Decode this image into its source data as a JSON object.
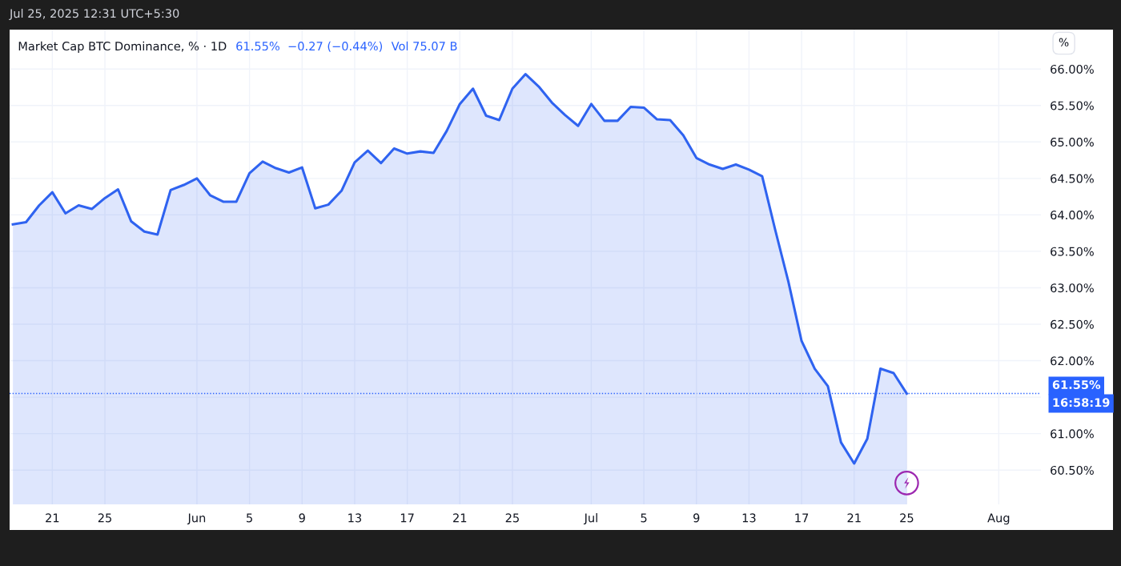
{
  "chart_data": {
    "type": "area",
    "title": "Market Cap BTC Dominance, % · 1D",
    "x": [
      "2025-05-18",
      "2025-05-19",
      "2025-05-20",
      "2025-05-21",
      "2025-05-22",
      "2025-05-23",
      "2025-05-24",
      "2025-05-25",
      "2025-05-26",
      "2025-05-27",
      "2025-05-28",
      "2025-05-29",
      "2025-05-30",
      "2025-05-31",
      "2025-06-01",
      "2025-06-02",
      "2025-06-03",
      "2025-06-04",
      "2025-06-05",
      "2025-06-06",
      "2025-06-07",
      "2025-06-08",
      "2025-06-09",
      "2025-06-10",
      "2025-06-11",
      "2025-06-12",
      "2025-06-13",
      "2025-06-14",
      "2025-06-15",
      "2025-06-16",
      "2025-06-17",
      "2025-06-18",
      "2025-06-19",
      "2025-06-20",
      "2025-06-21",
      "2025-06-22",
      "2025-06-23",
      "2025-06-24",
      "2025-06-25",
      "2025-06-26",
      "2025-06-27",
      "2025-06-28",
      "2025-06-29",
      "2025-06-30",
      "2025-07-01",
      "2025-07-02",
      "2025-07-03",
      "2025-07-04",
      "2025-07-05",
      "2025-07-06",
      "2025-07-07",
      "2025-07-08",
      "2025-07-09",
      "2025-07-10",
      "2025-07-11",
      "2025-07-12",
      "2025-07-13",
      "2025-07-14",
      "2025-07-15",
      "2025-07-16",
      "2025-07-17",
      "2025-07-18",
      "2025-07-19",
      "2025-07-20",
      "2025-07-21",
      "2025-07-22",
      "2025-07-23",
      "2025-07-24",
      "2025-07-25"
    ],
    "series": [
      {
        "color": "#2f63f0",
        "values": [
          63.87,
          63.9,
          64.13,
          64.31,
          64.02,
          64.13,
          64.08,
          64.23,
          64.35,
          63.91,
          63.77,
          63.73,
          64.34,
          64.41,
          64.5,
          64.27,
          64.18,
          64.18,
          64.57,
          64.73,
          64.64,
          64.58,
          64.65,
          64.09,
          64.14,
          64.33,
          64.72,
          64.88,
          64.71,
          64.91,
          64.84,
          64.87,
          64.85,
          65.15,
          65.52,
          65.73,
          65.36,
          65.3,
          65.73,
          65.93,
          65.76,
          65.54,
          65.37,
          65.22,
          65.52,
          65.29,
          65.29,
          65.48,
          65.47,
          65.31,
          65.3,
          65.09,
          64.78,
          64.69,
          64.63,
          64.69,
          64.62,
          64.53,
          63.79,
          63.08,
          62.27,
          61.89,
          61.65,
          60.88,
          60.59,
          60.93,
          61.89,
          61.83,
          61.55
        ]
      }
    ],
    "xlim": [
      "2025-05-17T18:00",
      "2025-08-04T05:00"
    ],
    "xticks": [
      {
        "value": "2025-05-21",
        "label": "21"
      },
      {
        "value": "2025-05-25",
        "label": "25"
      },
      {
        "value": "2025-06-01",
        "label": "Jun"
      },
      {
        "value": "2025-06-05",
        "label": "5"
      },
      {
        "value": "2025-06-09",
        "label": "9"
      },
      {
        "value": "2025-06-13",
        "label": "13"
      },
      {
        "value": "2025-06-17",
        "label": "17"
      },
      {
        "value": "2025-06-21",
        "label": "21"
      },
      {
        "value": "2025-06-25",
        "label": "25"
      },
      {
        "value": "2025-07-01",
        "label": "Jul"
      },
      {
        "value": "2025-07-05",
        "label": "5"
      },
      {
        "value": "2025-07-09",
        "label": "9"
      },
      {
        "value": "2025-07-13",
        "label": "13"
      },
      {
        "value": "2025-07-17",
        "label": "17"
      },
      {
        "value": "2025-07-21",
        "label": "21"
      },
      {
        "value": "2025-07-25",
        "label": "25"
      },
      {
        "value": "2025-08-01",
        "label": "Aug"
      }
    ],
    "ylim": [
      60.03,
      66.54
    ],
    "yticks": [
      {
        "value": 60.5,
        "label": "60.50%"
      },
      {
        "value": 61,
        "label": "61.00%"
      },
      {
        "value": 61.5,
        "label": null
      },
      {
        "value": 62,
        "label": "62.00%"
      },
      {
        "value": 62.5,
        "label": "62.50%"
      },
      {
        "value": 63,
        "label": "63.00%"
      },
      {
        "value": 63.5,
        "label": "63.50%"
      },
      {
        "value": 64,
        "label": "64.00%"
      },
      {
        "value": 64.5,
        "label": "64.50%"
      },
      {
        "value": 65,
        "label": "65.00%"
      },
      {
        "value": 65.5,
        "label": "65.50%"
      },
      {
        "value": 66,
        "label": "66.00%"
      }
    ],
    "ref_lines": [
      {
        "axis": "y",
        "value": 61.55,
        "label": "61.55%",
        "color": "#2962ff",
        "line_style": "dotted"
      }
    ],
    "annotations": [
      "61.55%  −0.27 (−0.44%)",
      "Vol 75.07 B",
      "16:58:19",
      "%",
      "Jul 25, 2025 12:31 UTC+5:30"
    ],
    "grid": true,
    "marker": "none",
    "line_style": "solid"
  }
}
